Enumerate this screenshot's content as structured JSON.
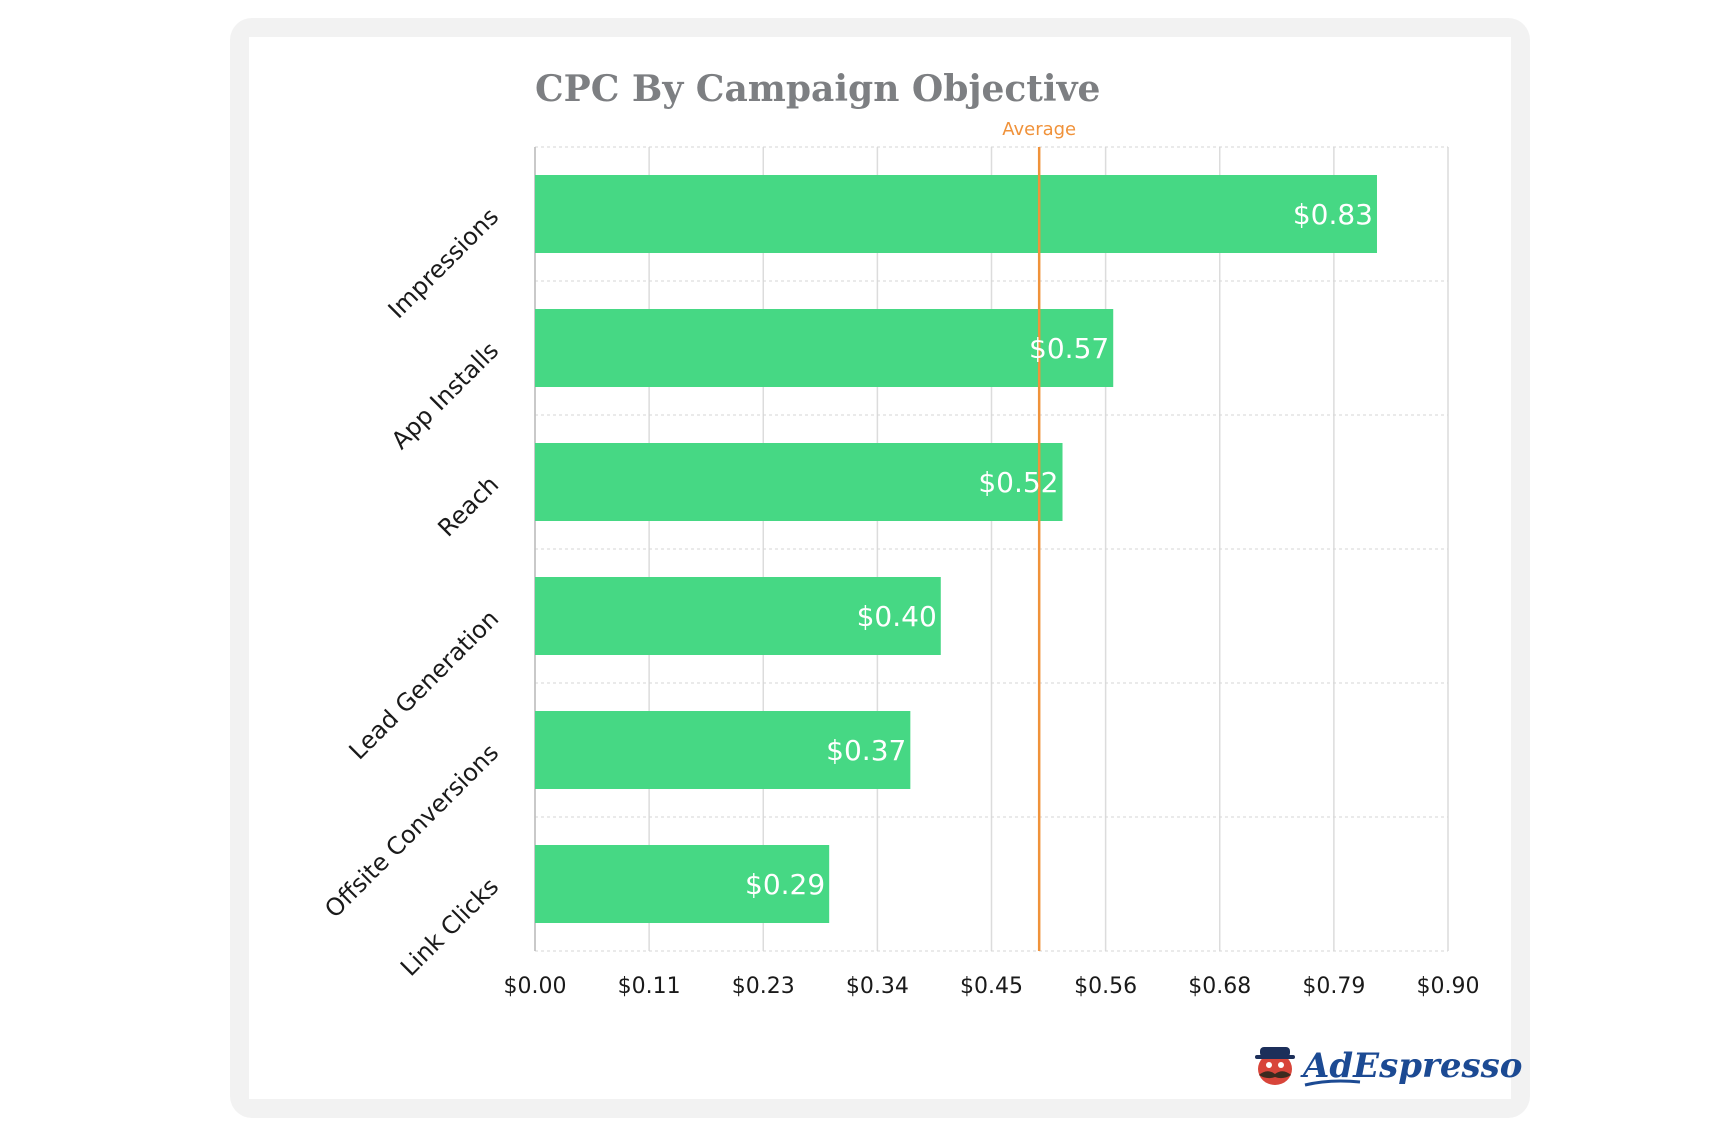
{
  "chart_data": {
    "type": "bar",
    "orientation": "horizontal",
    "title": "CPC By Campaign Objective",
    "categories": [
      "Impressions",
      "App Installs",
      "Reach",
      "Lead Generation",
      "Offsite Conversions",
      "Link Clicks"
    ],
    "values": [
      0.83,
      0.57,
      0.52,
      0.4,
      0.37,
      0.29
    ],
    "data_labels": [
      "$0.83",
      "$0.57",
      "$0.52",
      "$0.40",
      "$0.37",
      "$0.29"
    ],
    "x_ticks": [
      "$0.00",
      "$0.11",
      "$0.23",
      "$0.34",
      "$0.45",
      "$0.56",
      "$0.68",
      "$0.79",
      "$0.90"
    ],
    "xlim": [
      0,
      0.9
    ],
    "grid": true,
    "reference_line": {
      "label": "Average",
      "value": 0.497
    },
    "colors": {
      "bar": "#46d884",
      "average": "#f0923a",
      "title": "#7d7f82"
    }
  },
  "brand": {
    "name": "AdEspresso",
    "color": "#1c4a93",
    "icon": "mustache-mascot-icon"
  }
}
